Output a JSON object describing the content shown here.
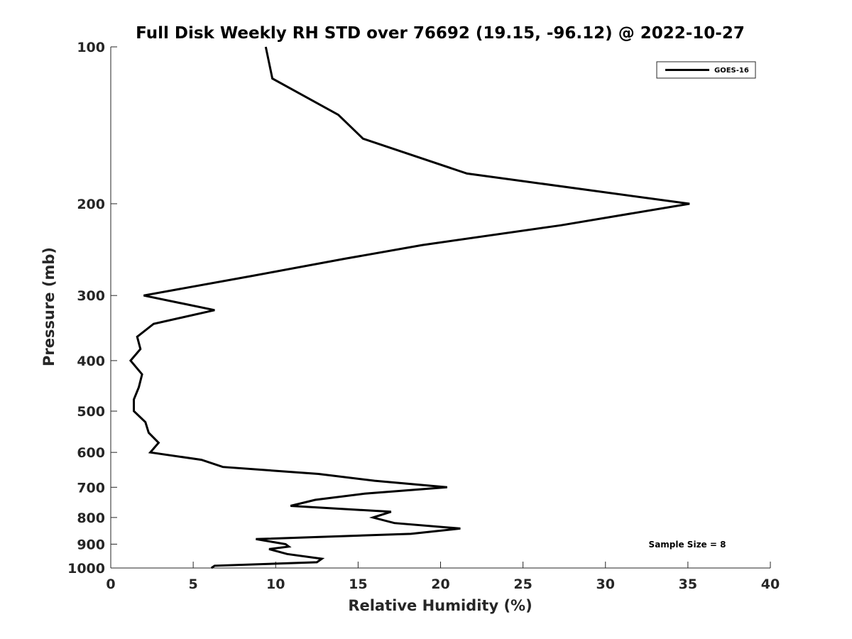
{
  "chart_data": {
    "type": "line",
    "title": "Full Disk Weekly RH STD over 76692 (19.15, -96.12) @ 2022-10-27",
    "xlabel": "Relative Humidity (%)",
    "ylabel": "Pressure (mb)",
    "xlim": [
      0,
      40
    ],
    "ylim": [
      100,
      1000
    ],
    "y_scale": "log",
    "y_reversed": true,
    "x_ticks": [
      "0",
      "5",
      "10",
      "15",
      "20",
      "25",
      "30",
      "35",
      "40"
    ],
    "y_ticks": [
      "100",
      "200",
      "300",
      "400",
      "500",
      "600",
      "700",
      "800",
      "900",
      "1000"
    ],
    "grid": false,
    "legend_position": "top-right",
    "series": [
      {
        "name": "GOES-16",
        "color": "#000000",
        "points": [
          [
            9.4,
            100
          ],
          [
            9.8,
            115
          ],
          [
            13.8,
            135
          ],
          [
            15.3,
            150
          ],
          [
            21.6,
            175
          ],
          [
            35.1,
            200
          ],
          [
            27.3,
            220
          ],
          [
            18.9,
            240
          ],
          [
            14.2,
            255
          ],
          [
            8.6,
            275
          ],
          [
            2.0,
            300
          ],
          [
            6.3,
            320
          ],
          [
            2.6,
            340
          ],
          [
            1.6,
            360
          ],
          [
            1.8,
            380
          ],
          [
            1.2,
            400
          ],
          [
            1.9,
            425
          ],
          [
            1.7,
            450
          ],
          [
            1.4,
            475
          ],
          [
            1.4,
            500
          ],
          [
            2.1,
            525
          ],
          [
            2.3,
            550
          ],
          [
            2.9,
            575
          ],
          [
            2.4,
            600
          ],
          [
            5.5,
            620
          ],
          [
            6.8,
            640
          ],
          [
            12.6,
            660
          ],
          [
            16.0,
            680
          ],
          [
            20.4,
            700
          ],
          [
            15.4,
            720
          ],
          [
            12.4,
            740
          ],
          [
            10.9,
            760
          ],
          [
            17.0,
            780
          ],
          [
            15.9,
            800
          ],
          [
            17.2,
            820
          ],
          [
            21.2,
            840
          ],
          [
            18.2,
            860
          ],
          [
            8.8,
            880
          ],
          [
            10.6,
            900
          ],
          [
            10.8,
            910
          ],
          [
            9.6,
            920
          ],
          [
            10.7,
            940
          ],
          [
            12.8,
            960
          ],
          [
            12.5,
            975
          ],
          [
            6.3,
            990
          ],
          [
            6.1,
            1000
          ]
        ]
      }
    ],
    "annotations": [
      "Sample Size = 8"
    ]
  },
  "colors": {
    "background": "#ffffff",
    "axis": "#262626",
    "line": "#000000"
  }
}
